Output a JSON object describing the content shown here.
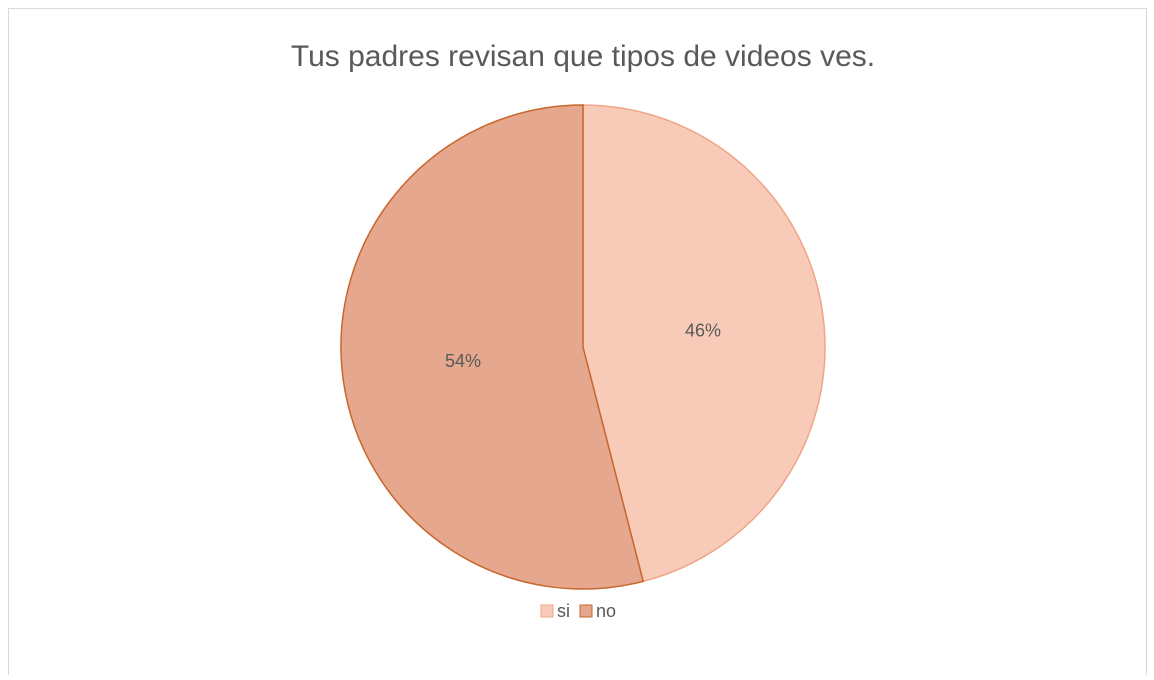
{
  "chart_data": {
    "type": "pie",
    "title": "Tus padres revisan que tipos de videos ves.",
    "categories": [
      "si",
      "no"
    ],
    "values": [
      46,
      54
    ],
    "value_labels": [
      "46%",
      "54%"
    ],
    "colors": [
      "#f8cbb9",
      "#e5a78d"
    ],
    "edge_colors": [
      "#f0a486",
      "#c8662c"
    ],
    "legend": "bottom"
  }
}
